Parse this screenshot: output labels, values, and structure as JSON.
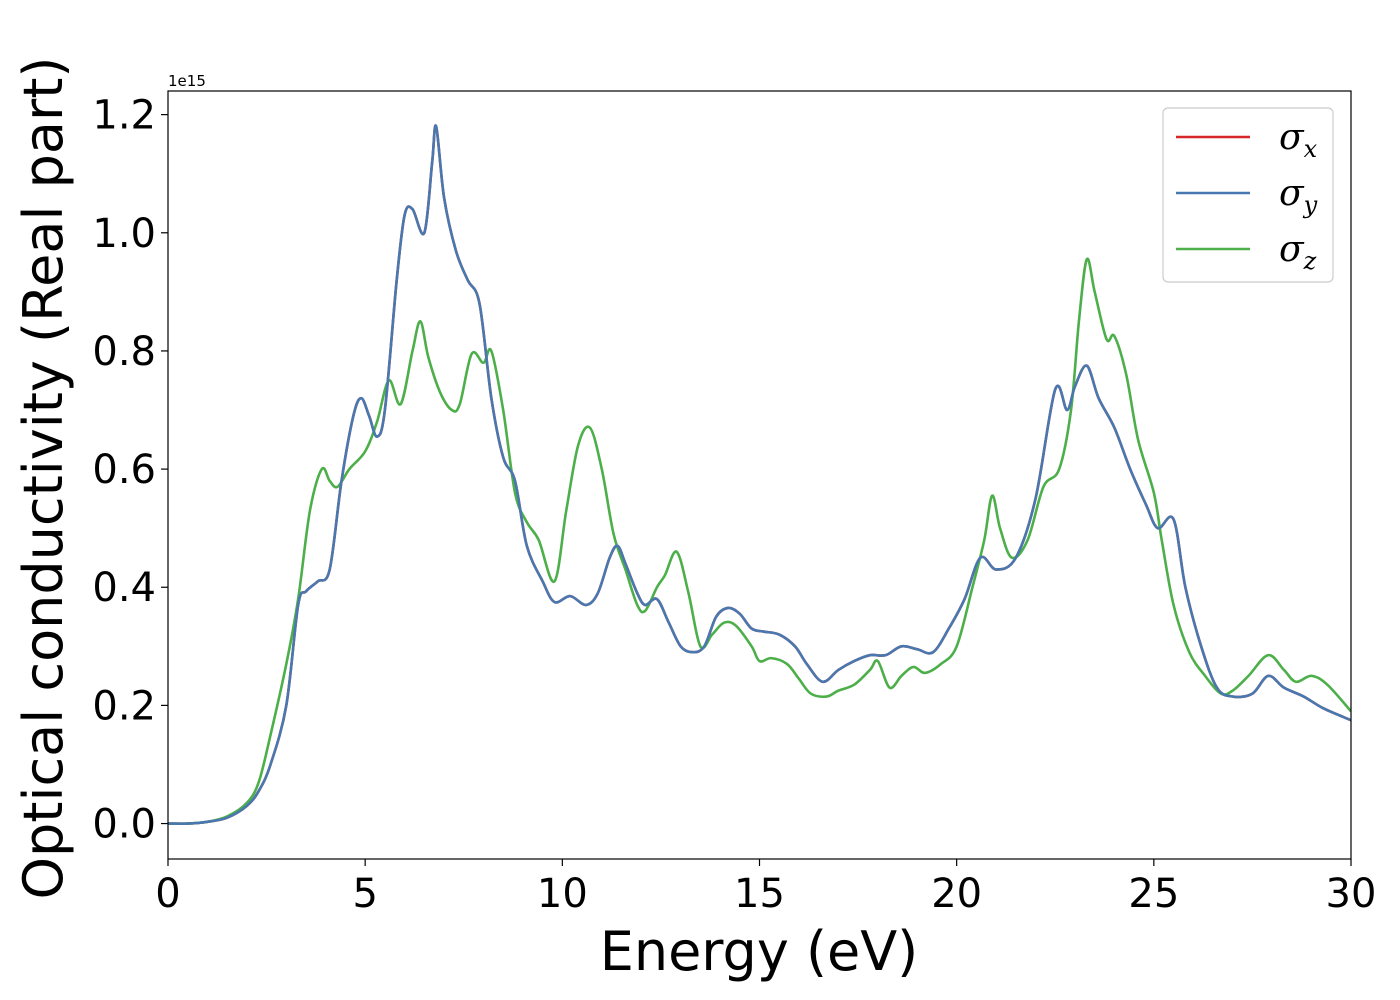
{
  "chart_data": {
    "type": "line",
    "xlabel": "Energy (eV)",
    "ylabel": "Optical conductivity (Real part)",
    "y_offset_label": "1e15",
    "xlim": [
      0,
      30
    ],
    "ylim": [
      -0.06,
      1.24
    ],
    "x_ticks": [
      0,
      5,
      10,
      15,
      20,
      25,
      30
    ],
    "x_tick_labels": [
      "0",
      "5",
      "10",
      "15",
      "20",
      "25",
      "30"
    ],
    "y_ticks": [
      0.0,
      0.2,
      0.4,
      0.6,
      0.8,
      1.0,
      1.2
    ],
    "y_tick_labels": [
      "0.0",
      "0.2",
      "0.4",
      "0.6",
      "0.8",
      "1.0",
      "1.2"
    ],
    "grid": false,
    "legend_position": "top-right",
    "series": [
      {
        "name": "σx",
        "symbol": "σ",
        "subscript": "x",
        "color": "#d62728",
        "points": [
          [
            0,
            0
          ],
          [
            0.5,
            0
          ],
          [
            1,
            0.003
          ],
          [
            1.5,
            0.01
          ],
          [
            2,
            0.03
          ],
          [
            2.3,
            0.055
          ],
          [
            2.6,
            0.1
          ],
          [
            3.0,
            0.2
          ],
          [
            3.3,
            0.37
          ],
          [
            3.5,
            0.393
          ],
          [
            3.8,
            0.41
          ],
          [
            4.1,
            0.43
          ],
          [
            4.4,
            0.58
          ],
          [
            4.7,
            0.69
          ],
          [
            4.9,
            0.72
          ],
          [
            5.1,
            0.69
          ],
          [
            5.3,
            0.655
          ],
          [
            5.5,
            0.7
          ],
          [
            5.8,
            0.92
          ],
          [
            6.0,
            1.03
          ],
          [
            6.2,
            1.04
          ],
          [
            6.5,
            1.0
          ],
          [
            6.7,
            1.12
          ],
          [
            6.8,
            1.18
          ],
          [
            7.0,
            1.06
          ],
          [
            7.3,
            0.97
          ],
          [
            7.6,
            0.92
          ],
          [
            7.9,
            0.88
          ],
          [
            8.2,
            0.72
          ],
          [
            8.5,
            0.62
          ],
          [
            8.8,
            0.58
          ],
          [
            9.1,
            0.47
          ],
          [
            9.5,
            0.41
          ],
          [
            9.8,
            0.375
          ],
          [
            10.2,
            0.385
          ],
          [
            10.6,
            0.37
          ],
          [
            10.9,
            0.39
          ],
          [
            11.2,
            0.45
          ],
          [
            11.4,
            0.47
          ],
          [
            11.6,
            0.44
          ],
          [
            11.9,
            0.39
          ],
          [
            12.1,
            0.37
          ],
          [
            12.4,
            0.38
          ],
          [
            12.7,
            0.34
          ],
          [
            13.0,
            0.3
          ],
          [
            13.3,
            0.29
          ],
          [
            13.6,
            0.3
          ],
          [
            13.9,
            0.35
          ],
          [
            14.2,
            0.365
          ],
          [
            14.5,
            0.355
          ],
          [
            14.8,
            0.33
          ],
          [
            15.1,
            0.325
          ],
          [
            15.5,
            0.32
          ],
          [
            15.9,
            0.3
          ],
          [
            16.2,
            0.27
          ],
          [
            16.6,
            0.24
          ],
          [
            17.0,
            0.26
          ],
          [
            17.4,
            0.275
          ],
          [
            17.8,
            0.285
          ],
          [
            18.2,
            0.285
          ],
          [
            18.6,
            0.3
          ],
          [
            19.0,
            0.295
          ],
          [
            19.4,
            0.29
          ],
          [
            19.8,
            0.33
          ],
          [
            20.2,
            0.38
          ],
          [
            20.6,
            0.45
          ],
          [
            21.0,
            0.43
          ],
          [
            21.5,
            0.45
          ],
          [
            22.0,
            0.55
          ],
          [
            22.5,
            0.735
          ],
          [
            22.8,
            0.7
          ],
          [
            23.0,
            0.74
          ],
          [
            23.3,
            0.775
          ],
          [
            23.6,
            0.72
          ],
          [
            24.0,
            0.67
          ],
          [
            24.4,
            0.6
          ],
          [
            24.8,
            0.54
          ],
          [
            25.1,
            0.5
          ],
          [
            25.5,
            0.515
          ],
          [
            25.8,
            0.4
          ],
          [
            26.2,
            0.3
          ],
          [
            26.6,
            0.23
          ],
          [
            27.0,
            0.215
          ],
          [
            27.5,
            0.22
          ],
          [
            27.9,
            0.25
          ],
          [
            28.3,
            0.23
          ],
          [
            28.8,
            0.215
          ],
          [
            29.3,
            0.195
          ],
          [
            30,
            0.175
          ]
        ]
      },
      {
        "name": "σy",
        "symbol": "σ",
        "subscript": "y",
        "color": "#4878b0",
        "points": [
          [
            0,
            0
          ],
          [
            0.5,
            0
          ],
          [
            1,
            0.003
          ],
          [
            1.5,
            0.01
          ],
          [
            2,
            0.03
          ],
          [
            2.3,
            0.055
          ],
          [
            2.6,
            0.1
          ],
          [
            3.0,
            0.2
          ],
          [
            3.3,
            0.37
          ],
          [
            3.5,
            0.393
          ],
          [
            3.8,
            0.41
          ],
          [
            4.1,
            0.43
          ],
          [
            4.4,
            0.58
          ],
          [
            4.7,
            0.69
          ],
          [
            4.9,
            0.72
          ],
          [
            5.1,
            0.69
          ],
          [
            5.3,
            0.655
          ],
          [
            5.5,
            0.7
          ],
          [
            5.8,
            0.92
          ],
          [
            6.0,
            1.03
          ],
          [
            6.2,
            1.04
          ],
          [
            6.5,
            1.0
          ],
          [
            6.7,
            1.12
          ],
          [
            6.8,
            1.18
          ],
          [
            7.0,
            1.06
          ],
          [
            7.3,
            0.97
          ],
          [
            7.6,
            0.92
          ],
          [
            7.9,
            0.88
          ],
          [
            8.2,
            0.72
          ],
          [
            8.5,
            0.62
          ],
          [
            8.8,
            0.58
          ],
          [
            9.1,
            0.47
          ],
          [
            9.5,
            0.41
          ],
          [
            9.8,
            0.375
          ],
          [
            10.2,
            0.385
          ],
          [
            10.6,
            0.37
          ],
          [
            10.9,
            0.39
          ],
          [
            11.2,
            0.45
          ],
          [
            11.4,
            0.47
          ],
          [
            11.6,
            0.44
          ],
          [
            11.9,
            0.39
          ],
          [
            12.1,
            0.37
          ],
          [
            12.4,
            0.38
          ],
          [
            12.7,
            0.34
          ],
          [
            13.0,
            0.3
          ],
          [
            13.3,
            0.29
          ],
          [
            13.6,
            0.3
          ],
          [
            13.9,
            0.35
          ],
          [
            14.2,
            0.365
          ],
          [
            14.5,
            0.355
          ],
          [
            14.8,
            0.33
          ],
          [
            15.1,
            0.325
          ],
          [
            15.5,
            0.32
          ],
          [
            15.9,
            0.3
          ],
          [
            16.2,
            0.27
          ],
          [
            16.6,
            0.24
          ],
          [
            17.0,
            0.26
          ],
          [
            17.4,
            0.275
          ],
          [
            17.8,
            0.285
          ],
          [
            18.2,
            0.285
          ],
          [
            18.6,
            0.3
          ],
          [
            19.0,
            0.295
          ],
          [
            19.4,
            0.29
          ],
          [
            19.8,
            0.33
          ],
          [
            20.2,
            0.38
          ],
          [
            20.6,
            0.45
          ],
          [
            21.0,
            0.43
          ],
          [
            21.5,
            0.45
          ],
          [
            22.0,
            0.55
          ],
          [
            22.5,
            0.735
          ],
          [
            22.8,
            0.7
          ],
          [
            23.0,
            0.74
          ],
          [
            23.3,
            0.775
          ],
          [
            23.6,
            0.72
          ],
          [
            24.0,
            0.67
          ],
          [
            24.4,
            0.6
          ],
          [
            24.8,
            0.54
          ],
          [
            25.1,
            0.5
          ],
          [
            25.5,
            0.515
          ],
          [
            25.8,
            0.4
          ],
          [
            26.2,
            0.3
          ],
          [
            26.6,
            0.23
          ],
          [
            27.0,
            0.215
          ],
          [
            27.5,
            0.22
          ],
          [
            27.9,
            0.25
          ],
          [
            28.3,
            0.23
          ],
          [
            28.8,
            0.215
          ],
          [
            29.3,
            0.195
          ],
          [
            30,
            0.175
          ]
        ]
      },
      {
        "name": "σz",
        "symbol": "σ",
        "subscript": "z",
        "color": "#4daf4a",
        "points": [
          [
            0,
            0
          ],
          [
            0.5,
            0
          ],
          [
            1,
            0.003
          ],
          [
            1.5,
            0.012
          ],
          [
            2,
            0.035
          ],
          [
            2.3,
            0.07
          ],
          [
            2.6,
            0.15
          ],
          [
            3.0,
            0.27
          ],
          [
            3.3,
            0.38
          ],
          [
            3.6,
            0.53
          ],
          [
            3.9,
            0.6
          ],
          [
            4.1,
            0.58
          ],
          [
            4.3,
            0.57
          ],
          [
            4.6,
            0.6
          ],
          [
            5.0,
            0.63
          ],
          [
            5.3,
            0.68
          ],
          [
            5.6,
            0.75
          ],
          [
            5.9,
            0.71
          ],
          [
            6.2,
            0.8
          ],
          [
            6.4,
            0.85
          ],
          [
            6.6,
            0.79
          ],
          [
            6.9,
            0.73
          ],
          [
            7.2,
            0.7
          ],
          [
            7.4,
            0.71
          ],
          [
            7.7,
            0.795
          ],
          [
            8.0,
            0.78
          ],
          [
            8.2,
            0.8
          ],
          [
            8.5,
            0.7
          ],
          [
            8.8,
            0.56
          ],
          [
            9.1,
            0.51
          ],
          [
            9.4,
            0.48
          ],
          [
            9.8,
            0.41
          ],
          [
            10.1,
            0.53
          ],
          [
            10.4,
            0.64
          ],
          [
            10.7,
            0.67
          ],
          [
            11.0,
            0.6
          ],
          [
            11.3,
            0.49
          ],
          [
            11.6,
            0.43
          ],
          [
            11.9,
            0.37
          ],
          [
            12.1,
            0.36
          ],
          [
            12.4,
            0.4
          ],
          [
            12.6,
            0.42
          ],
          [
            12.9,
            0.46
          ],
          [
            13.2,
            0.39
          ],
          [
            13.5,
            0.3
          ],
          [
            13.8,
            0.32
          ],
          [
            14.1,
            0.34
          ],
          [
            14.4,
            0.335
          ],
          [
            14.8,
            0.3
          ],
          [
            15.0,
            0.275
          ],
          [
            15.3,
            0.28
          ],
          [
            15.7,
            0.27
          ],
          [
            16.0,
            0.245
          ],
          [
            16.3,
            0.22
          ],
          [
            16.7,
            0.215
          ],
          [
            17.0,
            0.225
          ],
          [
            17.4,
            0.235
          ],
          [
            17.8,
            0.26
          ],
          [
            18.0,
            0.275
          ],
          [
            18.3,
            0.23
          ],
          [
            18.6,
            0.25
          ],
          [
            18.9,
            0.265
          ],
          [
            19.2,
            0.255
          ],
          [
            19.6,
            0.27
          ],
          [
            20.0,
            0.3
          ],
          [
            20.4,
            0.4
          ],
          [
            20.7,
            0.48
          ],
          [
            20.9,
            0.555
          ],
          [
            21.1,
            0.5
          ],
          [
            21.4,
            0.45
          ],
          [
            21.8,
            0.48
          ],
          [
            22.2,
            0.57
          ],
          [
            22.6,
            0.6
          ],
          [
            22.9,
            0.7
          ],
          [
            23.1,
            0.85
          ],
          [
            23.3,
            0.955
          ],
          [
            23.5,
            0.9
          ],
          [
            23.8,
            0.82
          ],
          [
            24.0,
            0.825
          ],
          [
            24.3,
            0.76
          ],
          [
            24.6,
            0.65
          ],
          [
            25.0,
            0.56
          ],
          [
            25.2,
            0.48
          ],
          [
            25.5,
            0.37
          ],
          [
            25.9,
            0.29
          ],
          [
            26.3,
            0.25
          ],
          [
            26.7,
            0.22
          ],
          [
            27.0,
            0.225
          ],
          [
            27.4,
            0.25
          ],
          [
            27.9,
            0.285
          ],
          [
            28.3,
            0.26
          ],
          [
            28.6,
            0.24
          ],
          [
            29.0,
            0.25
          ],
          [
            29.4,
            0.235
          ],
          [
            30,
            0.19
          ]
        ]
      }
    ]
  }
}
